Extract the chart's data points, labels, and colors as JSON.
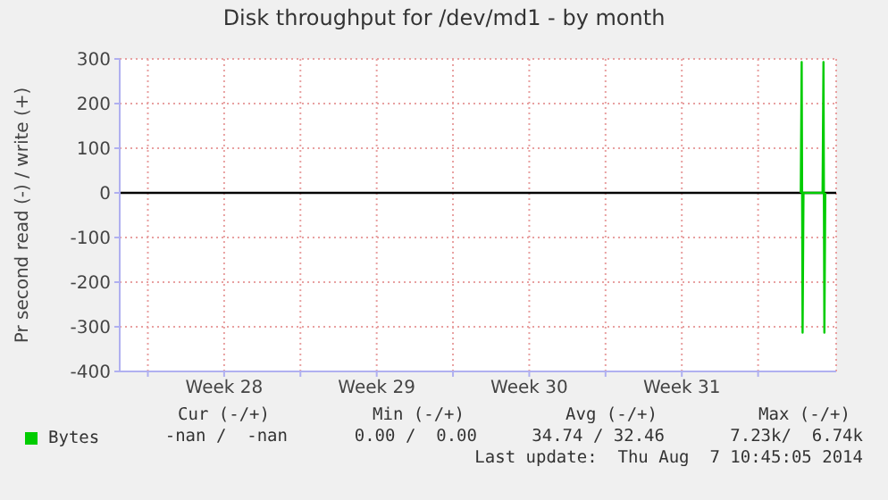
{
  "chart_data": {
    "type": "line",
    "title": "Disk throughput for /dev/md1 - by month",
    "ylabel": "Pr second read (-) / write (+)",
    "x": [
      "2014-08-05T23:00",
      "2014-08-06T00:00",
      "2014-08-06T01:00",
      "2014-08-06T02:00",
      "2014-08-06T23:00",
      "2014-08-07T00:00",
      "2014-08-07T01:00",
      "2014-08-07T02:00"
    ],
    "series": [
      {
        "name": "Bytes",
        "color": "#00cc00",
        "values": [
          0,
          293,
          -313,
          0,
          0,
          293,
          -313,
          0
        ]
      }
    ],
    "xlim": [
      "2014-07-05T17:00",
      "2014-08-07T14:00"
    ],
    "xticks": [
      {
        "value": "2014-07-07",
        "label": null
      },
      {
        "value": "2014-07-10T12:00",
        "label": "Week 28"
      },
      {
        "value": "2014-07-14",
        "label": null
      },
      {
        "value": "2014-07-17T12:00",
        "label": "Week 29"
      },
      {
        "value": "2014-07-21",
        "label": null
      },
      {
        "value": "2014-07-24T12:00",
        "label": "Week 30"
      },
      {
        "value": "2014-07-28",
        "label": null
      },
      {
        "value": "2014-07-31T12:00",
        "label": "Week 31"
      },
      {
        "value": "2014-08-04",
        "label": null
      }
    ],
    "ylim": [
      -400,
      300
    ],
    "yticks": [
      -400,
      -300,
      -200,
      -100,
      0,
      100,
      200,
      300
    ],
    "grid": true,
    "legend": "bottom left",
    "marker": "none",
    "line_style": "solid",
    "ref_lines": [
      {
        "axis": "y",
        "value": 0,
        "label": null,
        "color": "#000000"
      }
    ],
    "annotations": [
      "Cur (-/+)",
      "Min (-/+)",
      "Avg (-/+)",
      "Max (-/+)",
      "-nan /  -nan",
      "0.00 /  0.00",
      "34.74 / 32.46",
      "7.23k/  6.74k",
      "Last update:  Thu Aug  7 10:45:05 2014"
    ]
  }
}
